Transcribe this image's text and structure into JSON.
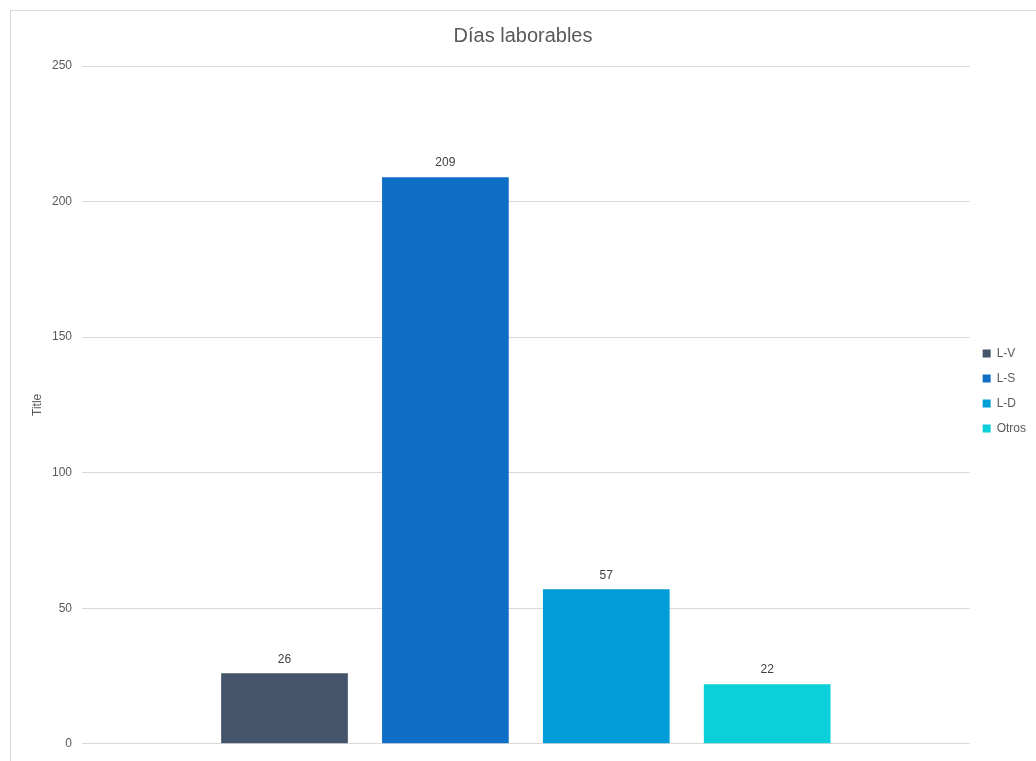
{
  "chart_data": {
    "type": "bar",
    "title": "Días laborables",
    "ylabel": "Title",
    "categories": [
      null
    ],
    "series": [
      {
        "name": "L-V",
        "color": "#44546a",
        "values": [
          26
        ]
      },
      {
        "name": "L-S",
        "color": "#0f6fc6",
        "values": [
          209
        ]
      },
      {
        "name": "L-D",
        "color": "#009dd9",
        "values": [
          57
        ]
      },
      {
        "name": "Otros",
        "color": "#0bd0d9",
        "values": [
          22
        ]
      }
    ],
    "ylim": [
      0,
      250
    ],
    "yticks": [
      0,
      50,
      100,
      150,
      200,
      250
    ],
    "grid": "y",
    "legend": "right",
    "data_labels": true,
    "tick_labels": "y"
  }
}
